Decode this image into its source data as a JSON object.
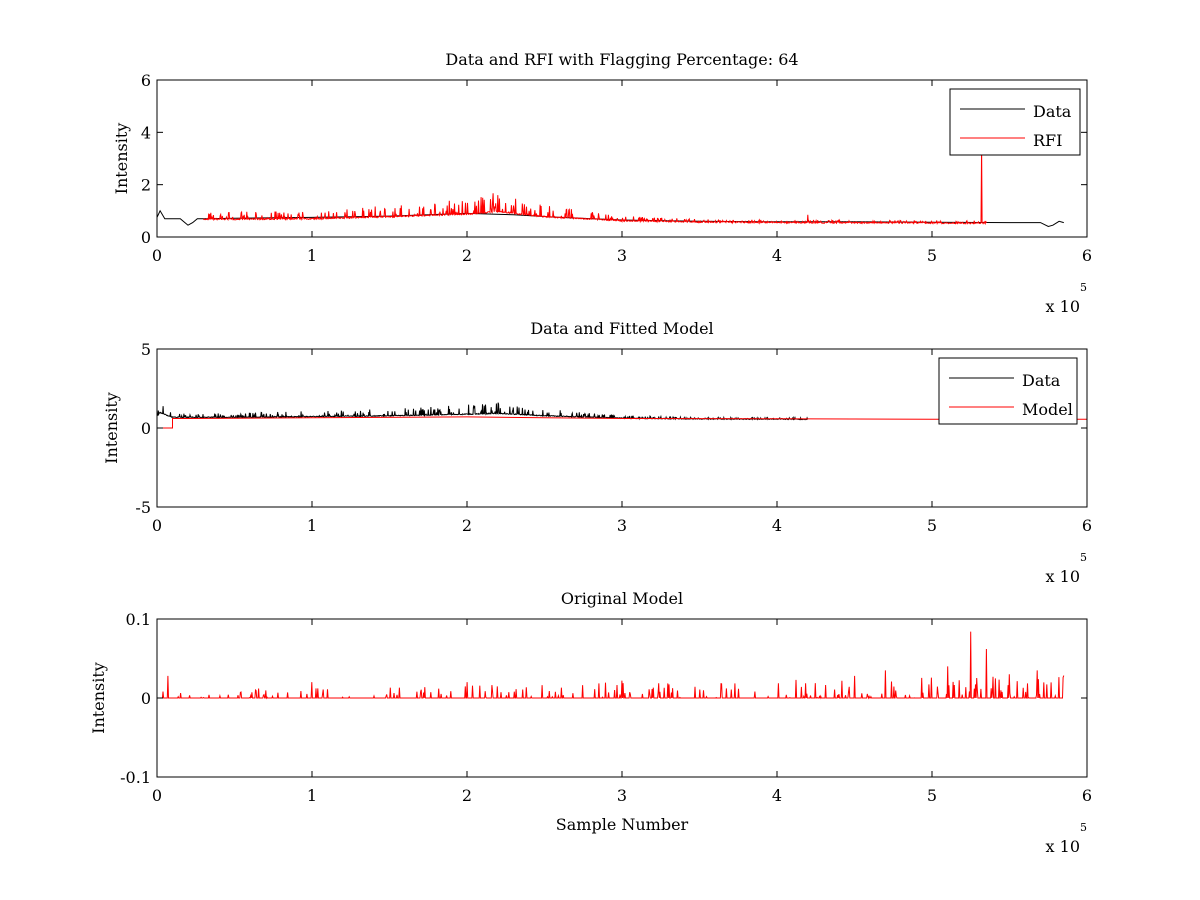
{
  "chart_data": [
    {
      "type": "line",
      "title": "Data and RFI with Flagging Percentage: 64",
      "xlabel": "",
      "ylabel": "Intensity",
      "xlim": [
        0,
        6
      ],
      "ylim": [
        0,
        6
      ],
      "xticks": [
        "0",
        "1",
        "2",
        "3",
        "4",
        "5",
        "6"
      ],
      "yticks": [
        "0",
        "2",
        "4",
        "6"
      ],
      "x_multiplier": {
        "base": "x 10",
        "exp": "5"
      },
      "grid": false,
      "legend_position": "top-right",
      "series": [
        {
          "name": "Data",
          "color": "#000000",
          "x": [
            0.0,
            0.02,
            0.05,
            0.1,
            0.15,
            0.18,
            0.2,
            0.23,
            0.26,
            0.3,
            0.5,
            1.0,
            1.5,
            2.0,
            2.3,
            2.6,
            3.0,
            3.5,
            4.0,
            4.5,
            5.0,
            5.5,
            5.7,
            5.75,
            5.78,
            5.82,
            5.85
          ],
          "y": [
            0.75,
            1.0,
            0.7,
            0.7,
            0.7,
            0.55,
            0.45,
            0.55,
            0.7,
            0.7,
            0.72,
            0.75,
            0.8,
            0.9,
            0.85,
            0.75,
            0.65,
            0.6,
            0.58,
            0.58,
            0.56,
            0.55,
            0.55,
            0.4,
            0.45,
            0.6,
            0.55
          ]
        },
        {
          "name": "RFI",
          "color": "#ff0000",
          "x_range": [
            0.3,
            5.35
          ],
          "baseline": [
            [
              0.3,
              0.7
            ],
            [
              1.0,
              0.72
            ],
            [
              1.5,
              0.8
            ],
            [
              2.0,
              0.9
            ],
            [
              2.2,
              1.0
            ],
            [
              2.5,
              0.8
            ],
            [
              3.0,
              0.65
            ],
            [
              3.5,
              0.6
            ],
            [
              4.0,
              0.58
            ],
            [
              4.7,
              0.57
            ],
            [
              5.35,
              0.55
            ]
          ],
          "peaks": [
            [
              1.9,
              1.1
            ],
            [
              2.05,
              1.35
            ],
            [
              2.1,
              1.5
            ],
            [
              2.15,
              1.45
            ],
            [
              2.2,
              1.6
            ],
            [
              2.25,
              1.3
            ],
            [
              2.3,
              1.2
            ],
            [
              2.4,
              1.0
            ],
            [
              4.2,
              0.85
            ],
            [
              5.32,
              3.5
            ]
          ]
        }
      ]
    },
    {
      "type": "line",
      "title": "Data and Fitted Model",
      "xlabel": "",
      "ylabel": "Intensity",
      "xlim": [
        0,
        6
      ],
      "ylim": [
        -5,
        5
      ],
      "xticks": [
        "0",
        "1",
        "2",
        "3",
        "4",
        "5",
        "6"
      ],
      "yticks": [
        "-5",
        "0",
        "5"
      ],
      "x_multiplier": {
        "base": "x 10",
        "exp": "5"
      },
      "grid": false,
      "legend_position": "top-right",
      "series": [
        {
          "name": "Data",
          "color": "#000000",
          "x_range": [
            0.0,
            4.2
          ],
          "baseline": [
            [
              0.0,
              0.8
            ],
            [
              0.02,
              1.0
            ],
            [
              0.1,
              0.7
            ],
            [
              0.5,
              0.7
            ],
            [
              1.0,
              0.75
            ],
            [
              1.5,
              0.8
            ],
            [
              2.0,
              0.9
            ],
            [
              2.2,
              0.95
            ],
            [
              2.5,
              0.8
            ],
            [
              3.0,
              0.65
            ],
            [
              3.5,
              0.6
            ],
            [
              4.2,
              0.58
            ]
          ],
          "peaks": [
            [
              2.05,
              1.4
            ],
            [
              2.1,
              1.5
            ],
            [
              2.2,
              1.6
            ],
            [
              2.3,
              1.3
            ]
          ]
        },
        {
          "name": "Model",
          "color": "#ff0000",
          "x": [
            0.0,
            0.1,
            0.1,
            0.2,
            0.5,
            1.0,
            2.0,
            3.0,
            4.0,
            5.0,
            6.0
          ],
          "y": [
            0.0,
            0.0,
            0.6,
            0.6,
            0.62,
            0.65,
            0.7,
            0.6,
            0.58,
            0.56,
            0.56
          ]
        }
      ]
    },
    {
      "type": "line",
      "title": "Original Model",
      "xlabel": "Sample Number",
      "ylabel": "Intensity",
      "xlim": [
        0,
        6
      ],
      "ylim": [
        -0.1,
        0.1
      ],
      "xticks": [
        "0",
        "1",
        "2",
        "3",
        "4",
        "5",
        "6"
      ],
      "yticks": [
        "-0.1",
        "0",
        "0.1"
      ],
      "x_multiplier": {
        "base": "x 10",
        "exp": "5"
      },
      "grid": false,
      "series": [
        {
          "color": "#ff0000",
          "x_range": [
            0.0,
            5.85
          ],
          "baseline": [
            [
              0.0,
              0.0
            ],
            [
              5.85,
              0.0
            ]
          ],
          "peaks": [
            [
              0.07,
              0.028
            ],
            [
              1.0,
              0.02
            ],
            [
              2.0,
              0.02
            ],
            [
              3.0,
              0.022
            ],
            [
              4.5,
              0.028
            ],
            [
              4.7,
              0.035
            ],
            [
              5.1,
              0.04
            ],
            [
              5.25,
              0.084
            ],
            [
              5.35,
              0.062
            ],
            [
              5.5,
              0.03
            ],
            [
              5.68,
              0.035
            ]
          ]
        }
      ]
    }
  ]
}
